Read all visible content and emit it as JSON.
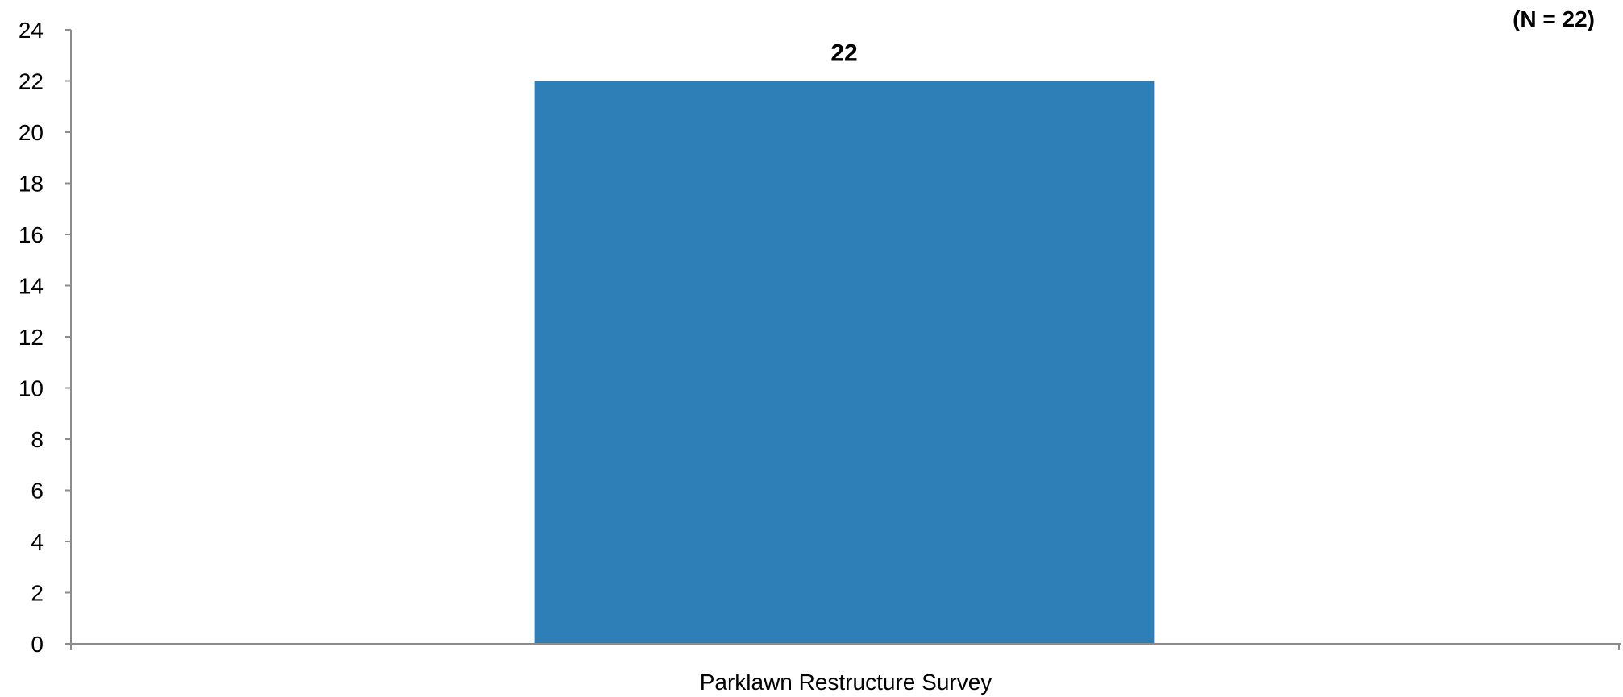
{
  "chart_data": {
    "type": "bar",
    "categories": [
      "Parklawn Restructure Survey"
    ],
    "values": [
      22
    ],
    "data_labels": [
      "22"
    ],
    "annotation": "(N = 22)",
    "title": "",
    "xlabel": "",
    "ylabel": "",
    "ylim": [
      0,
      24
    ],
    "y_ticks": [
      0,
      2,
      4,
      6,
      8,
      10,
      12,
      14,
      16,
      18,
      20,
      22,
      24
    ],
    "grid": false,
    "legend": "none",
    "bar_color": "#2e7fb8",
    "axis_color": "#8c8c8c"
  }
}
